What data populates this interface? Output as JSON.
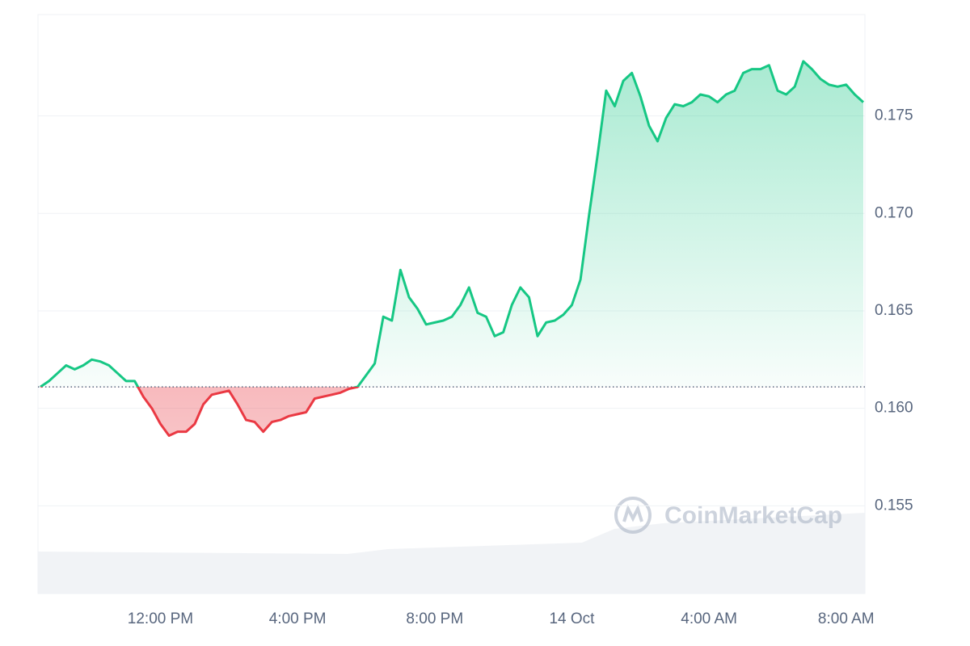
{
  "chart_data": {
    "type": "line",
    "watermark": "CoinMarketCap",
    "categories": [
      null,
      null,
      null,
      null,
      null,
      null,
      null,
      null,
      null,
      null,
      null,
      null,
      null,
      null,
      "12:00 PM",
      null,
      null,
      null,
      null,
      null,
      null,
      null,
      null,
      null,
      null,
      null,
      null,
      null,
      null,
      null,
      "4:00 PM",
      null,
      null,
      null,
      null,
      null,
      null,
      null,
      null,
      null,
      null,
      null,
      null,
      null,
      null,
      null,
      "8:00 PM",
      null,
      null,
      null,
      null,
      null,
      null,
      null,
      null,
      null,
      null,
      null,
      null,
      null,
      null,
      null,
      "14 Oct",
      null,
      null,
      null,
      null,
      null,
      null,
      null,
      null,
      null,
      null,
      null,
      null,
      null,
      null,
      null,
      "4:00 AM",
      null,
      null,
      null,
      null,
      null,
      null,
      null,
      null,
      null,
      null,
      null,
      null,
      null,
      null,
      null,
      "8:00 AM",
      null,
      null
    ],
    "values": [
      0.1611,
      0.1614,
      0.1618,
      0.1622,
      0.162,
      0.1622,
      0.1625,
      0.1624,
      0.1622,
      0.1618,
      0.1614,
      0.1614,
      0.1606,
      0.16,
      0.1592,
      0.1586,
      0.1588,
      0.1588,
      0.1592,
      0.1602,
      0.1607,
      0.1608,
      0.1609,
      0.1602,
      0.1594,
      0.1593,
      0.1588,
      0.1593,
      0.1594,
      0.1596,
      0.1597,
      0.1598,
      0.1605,
      0.1606,
      0.1607,
      0.1608,
      0.161,
      0.1611,
      0.1617,
      0.1623,
      0.1647,
      0.1645,
      0.1671,
      0.1657,
      0.1651,
      0.1643,
      0.1644,
      0.1645,
      0.1647,
      0.1653,
      0.1662,
      0.1649,
      0.1647,
      0.1637,
      0.1639,
      0.1653,
      0.1662,
      0.1657,
      0.1637,
      0.1644,
      0.1645,
      0.1648,
      0.1653,
      0.1666,
      0.1699,
      0.173,
      0.1763,
      0.1755,
      0.1768,
      0.1772,
      0.176,
      0.1745,
      0.1737,
      0.1749,
      0.1756,
      0.1755,
      0.1757,
      0.1761,
      0.176,
      0.1757,
      0.1761,
      0.1763,
      0.1772,
      0.1774,
      0.1774,
      0.1776,
      0.1763,
      0.1761,
      0.1765,
      0.1778,
      0.1774,
      0.1769,
      0.1766,
      0.1765,
      0.1766,
      0.1761,
      0.1757
    ],
    "baseline": 0.1611,
    "up_color": "#16c784",
    "down_color": "#ea3943",
    "ylim": [
      0.1505,
      0.1802
    ],
    "yticks": [
      0.155,
      {
        "value": 0.16,
        "label": "0.160"
      },
      0.165,
      {
        "value": 0.17,
        "label": "0.170"
      },
      0.175
    ],
    "grid": true
  }
}
